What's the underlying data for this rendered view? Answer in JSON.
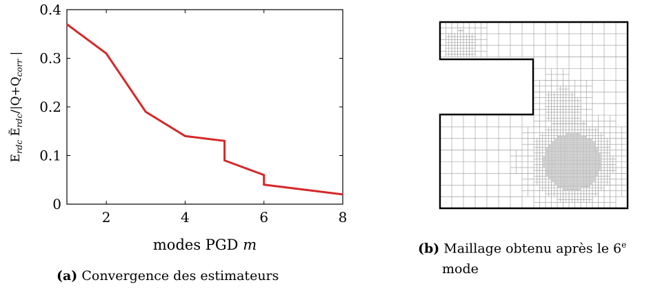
{
  "panel_a": {
    "caption_tag": "(a)",
    "caption_text": "Convergence des estimateurs"
  },
  "panel_b": {
    "caption_tag": "(b)",
    "caption_line1": "Maillage obtenu après le 6",
    "caption_sup": "e",
    "caption_line2": "mode"
  },
  "chart_data": {
    "type": "line",
    "xlabel": "modes PGD m",
    "ylabel": "E_rdc Ẽ_rdc /|Q+Q_corr|",
    "xlim": [
      1,
      8
    ],
    "ylim": [
      0,
      0.4
    ],
    "x_ticks": [
      "2",
      "4",
      "6",
      "8"
    ],
    "y_ticks": [
      "0",
      "0.1",
      "0.2",
      "0.3",
      "0.4"
    ],
    "series": [
      {
        "color": "#d62728",
        "points": [
          [
            1,
            0.37
          ],
          [
            2,
            0.31
          ],
          [
            3,
            0.19
          ],
          [
            4,
            0.14
          ],
          [
            5,
            0.13
          ],
          [
            5,
            0.09
          ],
          [
            6,
            0.06
          ],
          [
            6,
            0.04
          ],
          [
            8,
            0.02
          ]
        ]
      }
    ]
  }
}
